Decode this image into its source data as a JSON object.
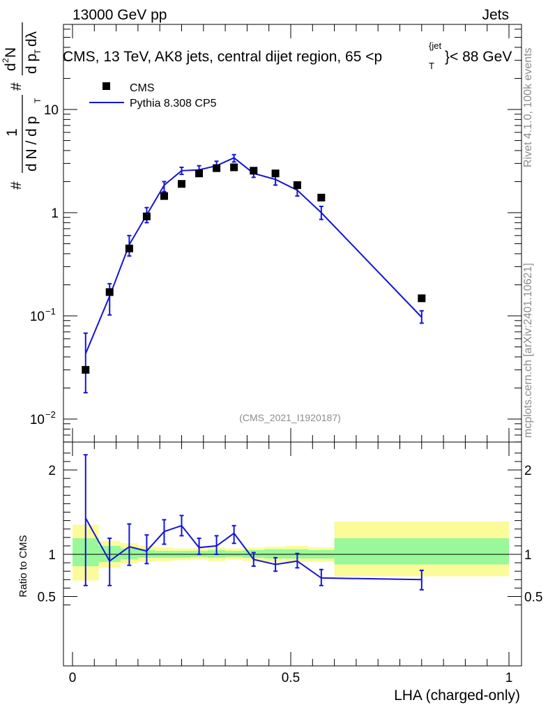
{
  "header": {
    "energy_label": "13000 GeV pp",
    "category_label": "Jets"
  },
  "side_labels": {
    "rivet": "Rivet 4.1.0,  100k events",
    "source": "mcplots.cern.ch [arXiv:2401.10621]"
  },
  "colors": {
    "mc_line": "#1414d8",
    "data_marker": "#000000",
    "band_inner": "#99f899",
    "band_outer": "#fbfb99"
  },
  "chart_data": [
    {
      "type": "scatter",
      "name": "main-distribution",
      "title": "CMS, 13 TeV, AK8 jets, central dijet region, 65 <p_T^{jet}< 88 GeV",
      "title_parts": {
        "prefix": "CMS, 13 TeV, AK8 jets, central dijet region, 65 <p",
        "sub": "T",
        "sup": "{jet",
        "suffix": "}< 88 GeV"
      },
      "ylabel_parts": {
        "hash_top": "#",
        "frac_num": "1",
        "frac_den": "d N / d p",
        "frac_den_sub": "T",
        "hash_mid": "#",
        "dnum": "d",
        "dnum_sup": "2",
        "dnum_N": "N",
        "dden": "d p",
        "dden_sub": "T",
        "dden_lambda": "dλ"
      },
      "yscale": "log",
      "ylim": [
        0.006,
        40
      ],
      "xlim": [
        -0.02,
        1.0
      ],
      "y_ticks": [
        {
          "value": 0.01,
          "label": "10",
          "exp": "−2"
        },
        {
          "value": 0.1,
          "label": "10",
          "exp": "−1"
        },
        {
          "value": 1,
          "label": "1",
          "exp": ""
        },
        {
          "value": 10,
          "label": "10",
          "exp": ""
        }
      ],
      "analysis_tag": "(CMS_2021_I1920187)",
      "legend_position": "top-left",
      "series": [
        {
          "name": "CMS",
          "kind": "data",
          "x": [
            0.03,
            0.085,
            0.13,
            0.17,
            0.21,
            0.25,
            0.29,
            0.33,
            0.37,
            0.415,
            0.465,
            0.515,
            0.57,
            0.8
          ],
          "y": [
            0.03,
            0.17,
            0.45,
            0.92,
            1.45,
            1.9,
            2.4,
            2.7,
            2.75,
            2.55,
            2.4,
            1.85,
            1.4,
            0.148
          ]
        },
        {
          "name": "Pythia 8.308 CP5",
          "kind": "mc",
          "x": [
            0.03,
            0.085,
            0.13,
            0.17,
            0.21,
            0.25,
            0.29,
            0.33,
            0.37,
            0.415,
            0.465,
            0.515,
            0.57,
            0.8
          ],
          "y": [
            0.043,
            0.155,
            0.49,
            0.95,
            1.85,
            2.55,
            2.6,
            2.85,
            3.4,
            2.4,
            2.1,
            1.65,
            1.0,
            0.097
          ],
          "yerr_lo": [
            0.018,
            0.102,
            0.38,
            0.8,
            1.6,
            2.35,
            2.4,
            2.6,
            3.1,
            2.2,
            1.85,
            1.45,
            0.86,
            0.085
          ],
          "yerr_hi": [
            0.068,
            0.205,
            0.6,
            1.12,
            2.0,
            2.75,
            2.85,
            3.15,
            3.65,
            2.6,
            2.35,
            1.85,
            1.15,
            0.112
          ]
        }
      ]
    },
    {
      "type": "line",
      "name": "ratio-panel",
      "ylabel": "Ratio to CMS",
      "xlabel": "LHA (charged-only)",
      "yscale": "linear",
      "ylim": [
        0.34,
        2.26
      ],
      "xlim": [
        -0.02,
        1.0
      ],
      "y_ticks": [
        {
          "value": 0.5,
          "label": "0.5"
        },
        {
          "value": 1,
          "label": "1"
        },
        {
          "value": 2,
          "label": "2"
        }
      ],
      "x_ticks": [
        {
          "value": 0,
          "label": "0"
        },
        {
          "value": 0.5,
          "label": "0.5"
        },
        {
          "value": 1,
          "label": "1"
        }
      ],
      "unity_line": 1.0,
      "bands": [
        {
          "x0": 0.0,
          "x1": 0.06,
          "in_lo": 0.86,
          "in_hi": 1.19,
          "out_lo": 0.69,
          "out_hi": 1.35
        },
        {
          "x0": 0.06,
          "x1": 0.11,
          "in_lo": 0.91,
          "in_hi": 1.1,
          "out_lo": 0.84,
          "out_hi": 1.16
        },
        {
          "x0": 0.11,
          "x1": 0.15,
          "in_lo": 0.94,
          "in_hi": 1.07,
          "out_lo": 0.89,
          "out_hi": 1.13
        },
        {
          "x0": 0.15,
          "x1": 0.19,
          "in_lo": 0.96,
          "in_hi": 1.05,
          "out_lo": 0.91,
          "out_hi": 1.1
        },
        {
          "x0": 0.19,
          "x1": 0.23,
          "in_lo": 0.96,
          "in_hi": 1.04,
          "out_lo": 0.92,
          "out_hi": 1.08
        },
        {
          "x0": 0.23,
          "x1": 0.27,
          "in_lo": 0.96,
          "in_hi": 1.04,
          "out_lo": 0.93,
          "out_hi": 1.07
        },
        {
          "x0": 0.27,
          "x1": 0.31,
          "in_lo": 0.97,
          "in_hi": 1.04,
          "out_lo": 0.94,
          "out_hi": 1.07
        },
        {
          "x0": 0.31,
          "x1": 0.35,
          "in_lo": 0.96,
          "in_hi": 1.05,
          "out_lo": 0.92,
          "out_hi": 1.08
        },
        {
          "x0": 0.35,
          "x1": 0.39,
          "in_lo": 0.97,
          "in_hi": 1.04,
          "out_lo": 0.94,
          "out_hi": 1.07
        },
        {
          "x0": 0.39,
          "x1": 0.44,
          "in_lo": 0.96,
          "in_hi": 1.05,
          "out_lo": 0.92,
          "out_hi": 1.08
        },
        {
          "x0": 0.44,
          "x1": 0.49,
          "in_lo": 0.95,
          "in_hi": 1.06,
          "out_lo": 0.91,
          "out_hi": 1.09
        },
        {
          "x0": 0.49,
          "x1": 0.54,
          "in_lo": 0.95,
          "in_hi": 1.06,
          "out_lo": 0.91,
          "out_hi": 1.1
        },
        {
          "x0": 0.54,
          "x1": 0.6,
          "in_lo": 0.95,
          "in_hi": 1.05,
          "out_lo": 0.91,
          "out_hi": 1.08
        },
        {
          "x0": 0.6,
          "x1": 1.0,
          "in_lo": 0.88,
          "in_hi": 1.19,
          "out_lo": 0.74,
          "out_hi": 1.39
        }
      ],
      "series": [
        {
          "name": "Pythia 8.308 CP5",
          "x": [
            0.03,
            0.085,
            0.13,
            0.17,
            0.21,
            0.25,
            0.29,
            0.33,
            0.37,
            0.415,
            0.465,
            0.515,
            0.57,
            0.8
          ],
          "y": [
            1.43,
            0.92,
            1.09,
            1.04,
            1.27,
            1.34,
            1.08,
            1.1,
            1.25,
            0.94,
            0.88,
            0.92,
            0.72,
            0.7
          ],
          "yerr_lo": [
            0.63,
            0.63,
            0.87,
            0.89,
            1.12,
            1.22,
            1.0,
            1.0,
            1.13,
            0.86,
            0.8,
            0.84,
            0.63,
            0.58
          ],
          "yerr_hi": [
            2.18,
            1.19,
            1.36,
            1.23,
            1.41,
            1.46,
            1.19,
            1.22,
            1.34,
            1.02,
            0.96,
            1.01,
            0.82,
            0.81
          ]
        }
      ]
    }
  ]
}
